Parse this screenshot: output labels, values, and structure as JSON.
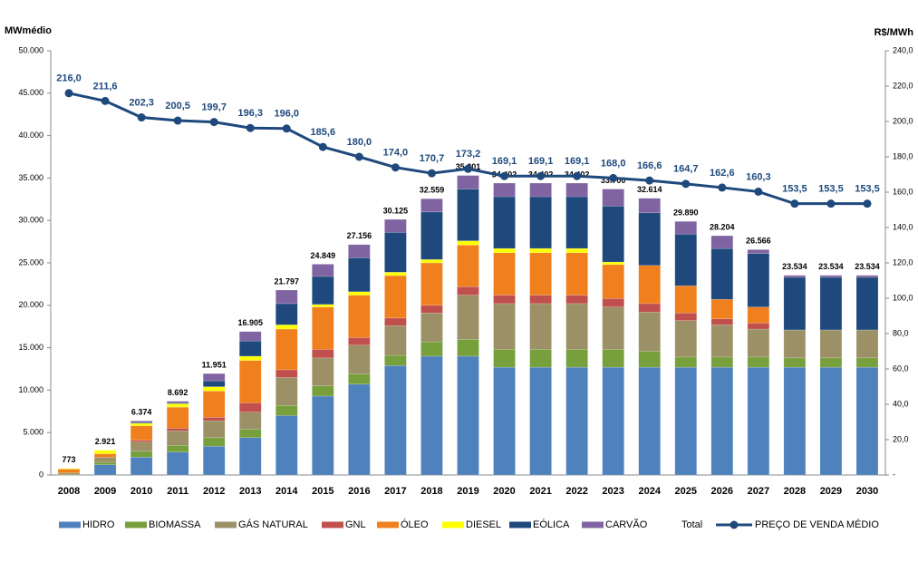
{
  "chart_data": {
    "type": "bar",
    "y_label": "MWmédio",
    "y2_label": "R$/MWh",
    "categories": [
      "2008",
      "2009",
      "2010",
      "2011",
      "2012",
      "2013",
      "2014",
      "2015",
      "2016",
      "2017",
      "2018",
      "2019",
      "2020",
      "2021",
      "2022",
      "2023",
      "2024",
      "2025",
      "2026",
      "2027",
      "2028",
      "2029",
      "2030"
    ],
    "ylim": [
      0,
      50000
    ],
    "yticks": [
      0,
      {
        "value": 5000,
        "label": "5.000"
      },
      {
        "value": 10000,
        "label": "10.000"
      },
      {
        "value": 15000,
        "label": "15.000"
      },
      {
        "value": 20000,
        "label": "20.000"
      },
      {
        "value": 25000,
        "label": "25.000"
      },
      {
        "value": 30000,
        "label": "30.000"
      },
      {
        "value": 35000,
        "label": "35.000"
      },
      {
        "value": 40000,
        "label": "40.000"
      },
      {
        "value": 45000,
        "label": "45.000"
      },
      {
        "value": 50000,
        "label": "50.000"
      }
    ],
    "y2lim": [
      0,
      240
    ],
    "y2ticks": [
      {
        "value": 0,
        "label": "-"
      },
      {
        "value": 20,
        "label": "20,0"
      },
      {
        "value": 40,
        "label": "40,0"
      },
      {
        "value": 60,
        "label": "60,0"
      },
      {
        "value": 80,
        "label": "80,0"
      },
      {
        "value": 100,
        "label": "100,0"
      },
      {
        "value": 120,
        "label": "120,0"
      },
      {
        "value": 140,
        "label": "140,0"
      },
      {
        "value": 160,
        "label": "160,0"
      },
      {
        "value": 180,
        "label": "180,0"
      },
      {
        "value": 200,
        "label": "200,0"
      },
      {
        "value": 220,
        "label": "220,0"
      },
      {
        "value": 240,
        "label": "240,0"
      }
    ],
    "series": [
      {
        "name": "HIDRO",
        "color": "#4f81bd",
        "values": [
          0,
          1200,
          2100,
          2700,
          3400,
          4400,
          7000,
          9300,
          10700,
          12900,
          14000,
          14000,
          12700,
          12700,
          12700,
          12700,
          12700,
          12700,
          12700,
          12700,
          12700,
          12700,
          12700
        ]
      },
      {
        "name": "BIOMASSA",
        "color": "#77a03c",
        "values": [
          50,
          300,
          700,
          800,
          1000,
          1000,
          1200,
          1200,
          1200,
          1200,
          1700,
          2000,
          2100,
          2100,
          2100,
          2100,
          1900,
          1200,
          1200,
          1200,
          1100,
          1100,
          1100
        ]
      },
      {
        "name": "GÁS NATURAL",
        "color": "#9c9066",
        "values": [
          200,
          600,
          1100,
          1700,
          2000,
          2000,
          3300,
          3300,
          3400,
          3500,
          3400,
          5200,
          5400,
          5400,
          5400,
          5000,
          4600,
          4300,
          3800,
          3300,
          3300,
          3300,
          3300
        ]
      },
      {
        "name": "GNL",
        "color": "#c0504d",
        "values": [
          0,
          0,
          200,
          300,
          400,
          1100,
          900,
          1000,
          900,
          900,
          900,
          1000,
          1000,
          1000,
          1000,
          1000,
          1000,
          900,
          700,
          700,
          0,
          0,
          0
        ]
      },
      {
        "name": "ÓLEO",
        "color": "#f0801e",
        "values": [
          450,
          400,
          1700,
          2500,
          3100,
          5000,
          4800,
          5000,
          5000,
          5000,
          5000,
          4900,
          5000,
          5000,
          5000,
          4000,
          4500,
          3200,
          2300,
          1900,
          0,
          0,
          0
        ]
      },
      {
        "name": "DIESEL",
        "color": "#ffff00",
        "values": [
          73,
          421,
          300,
          400,
          500,
          500,
          500,
          300,
          400,
          400,
          400,
          500,
          500,
          500,
          500,
          300,
          0,
          0,
          0,
          0,
          0,
          0,
          0
        ]
      },
      {
        "name": "EÓLICA",
        "color": "#1f497d",
        "values": [
          0,
          0,
          100,
          100,
          700,
          1800,
          2500,
          3300,
          4000,
          4700,
          5600,
          6100,
          6100,
          6100,
          6100,
          6600,
          6200,
          6100,
          6000,
          6300,
          6200,
          6200,
          6200
        ]
      },
      {
        "name": "CARVÃO",
        "color": "#8064a2",
        "values": [
          0,
          0,
          174,
          192,
          851,
          1105,
          1597,
          1449,
          1556,
          1525,
          1559,
          1601,
          1602,
          1602,
          1602,
          2000,
          1714,
          1490,
          1504,
          466,
          234,
          234,
          234
        ]
      },
      {
        "name": "Total",
        "values": [
          773,
          2921,
          6374,
          8692,
          11951,
          16905,
          21797,
          24849,
          27156,
          30125,
          32559,
          35301,
          34402,
          34402,
          34402,
          33700,
          32614,
          29890,
          28204,
          26566,
          23534,
          23534,
          23534
        ],
        "value_labels": [
          "773",
          "2.921",
          "6.374",
          "8.692",
          "11.951",
          "16.905",
          "21.797",
          "24.849",
          "27.156",
          "30.125",
          "32.559",
          "35.301",
          "34.402",
          "34.402",
          "34.402",
          "33.700",
          "32.614",
          "29.890",
          "28.204",
          "26.566",
          "23.534",
          "23.534",
          "23.534"
        ]
      },
      {
        "name": "PREÇO DE VENDA MÉDIO",
        "color": "#1f497d",
        "axis": "y2",
        "values": [
          216.0,
          211.6,
          202.3,
          200.5,
          199.7,
          196.3,
          196.0,
          185.6,
          180.0,
          174.0,
          170.7,
          173.2,
          169.1,
          169.1,
          169.1,
          168.0,
          166.6,
          164.7,
          162.6,
          160.3,
          153.5,
          153.5,
          153.5
        ],
        "value_labels": [
          "216,0",
          "211,6",
          "202,3",
          "200,5",
          "199,7",
          "196,3",
          "196,0",
          "185,6",
          "180,0",
          "174,0",
          "170,7",
          "173,2",
          "169,1",
          "169,1",
          "169,1",
          "168,0",
          "166,6",
          "164,7",
          "162,6",
          "160,3",
          "153,5",
          "153,5",
          "153,5"
        ]
      }
    ]
  }
}
